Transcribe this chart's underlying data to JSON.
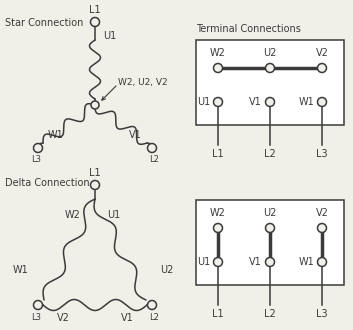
{
  "bg_color": "#f0efe8",
  "line_color": "#3a3a3a",
  "title_star": "Star Connection",
  "title_delta": "Delta Connection",
  "title_terminal": "Terminal Connections",
  "fs": 7.0,
  "lw": 1.1
}
